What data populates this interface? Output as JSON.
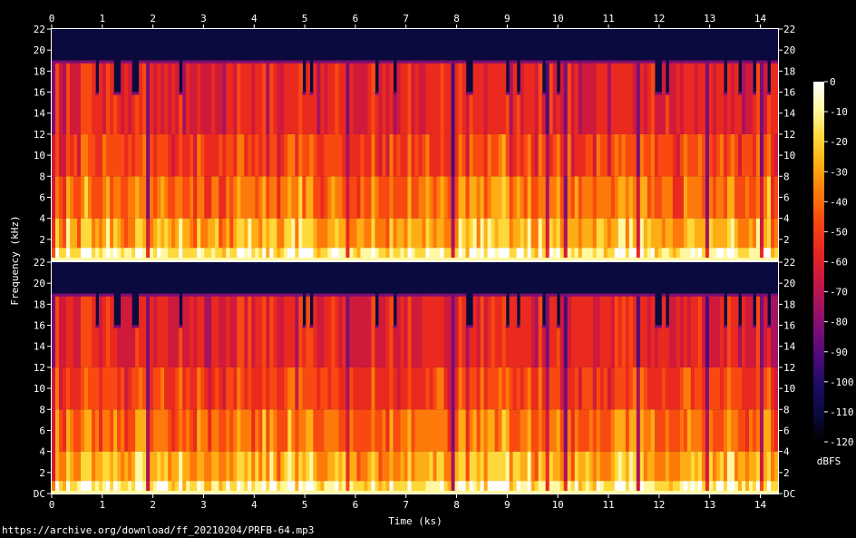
{
  "chart_data": {
    "type": "heatmap",
    "subtype": "spectrogram",
    "channels": 2,
    "xlabel": "Time (ks)",
    "ylabel": "Frequency (kHz)",
    "colorbar_label": "dBFS",
    "x_ticks": [
      0,
      1,
      2,
      3,
      4,
      5,
      6,
      7,
      8,
      9,
      10,
      11,
      12,
      13,
      14
    ],
    "xlim": [
      0,
      14.35
    ],
    "y_ticks_top": [
      "22",
      "20",
      "18",
      "16",
      "14",
      "12",
      "10",
      "8",
      "6",
      "4",
      "2"
    ],
    "y_ticks_bottom": [
      "22",
      "20",
      "18",
      "16",
      "14",
      "12",
      "10",
      "8",
      "6",
      "4",
      "2",
      "DC"
    ],
    "ylim": [
      0,
      22
    ],
    "colorbar_ticks": [
      "0",
      "-10",
      "-20",
      "-30",
      "-40",
      "-50",
      "-60",
      "-70",
      "-80",
      "-90",
      "-100",
      "-110",
      "-120"
    ],
    "colorbar_range": [
      -120,
      0
    ],
    "colormap": [
      "#000000",
      "#0b0a3e",
      "#1a0c62",
      "#4a0a7a",
      "#7a0d78",
      "#a8125e",
      "#cf1a3c",
      "#ea2a1e",
      "#f84a10",
      "#fd7a0a",
      "#ffad14",
      "#ffd83a",
      "#fff8a0",
      "#ffffff"
    ],
    "lowpass_cutoff_khz": 19,
    "notes_cutoff_dips_khz": 16
  },
  "source_url": "https://archive.org/download/ff_20210204/PRFB-64.mp3"
}
